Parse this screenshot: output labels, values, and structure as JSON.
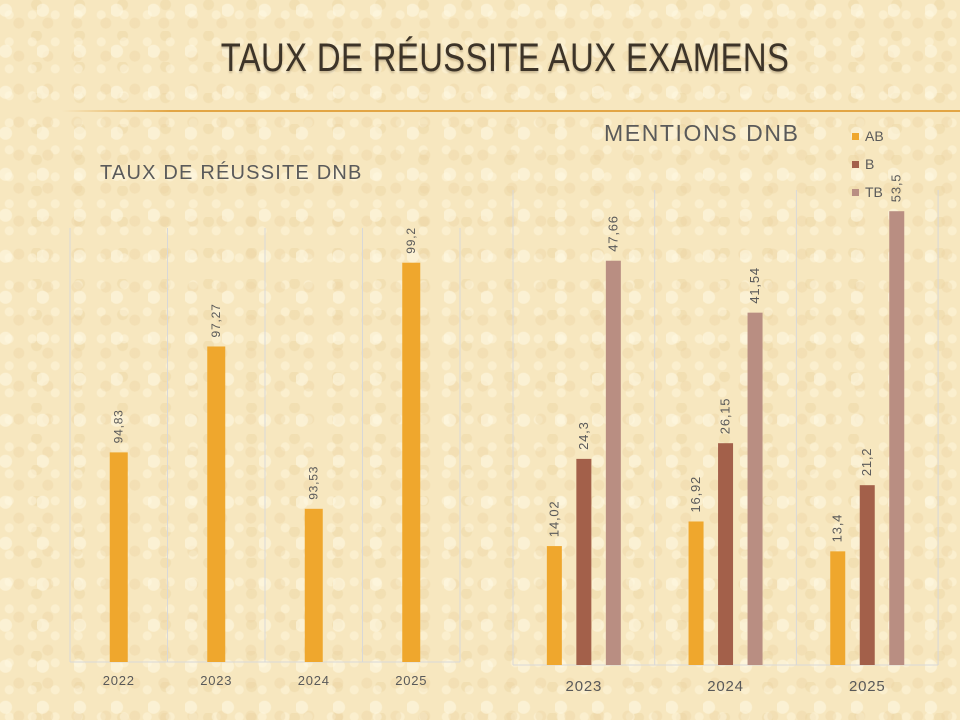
{
  "slide": {
    "title": "TAUX DE RÉUSSITE AUX EXAMENS"
  },
  "colors": {
    "accent": "#efa72d",
    "ab": "#efa72d",
    "b": "#a3604a",
    "tb": "#b98e82",
    "grid": "#d8d8d8",
    "text": "#595959"
  },
  "chart_data": [
    {
      "type": "bar",
      "title": "TAUX DE RÉUSSITE DNB",
      "categories": [
        "2022",
        "2023",
        "2024",
        "2025"
      ],
      "values": [
        94.83,
        97.27,
        93.53,
        99.2
      ],
      "labels": [
        "94,83",
        "97,27",
        "93,53",
        "99,2"
      ],
      "ylim": [
        90,
        100
      ],
      "grid": "vertical-category-lines"
    },
    {
      "type": "bar",
      "title": "MENTIONS DNB",
      "categories": [
        "2023",
        "2024",
        "2025"
      ],
      "series": [
        {
          "name": "AB",
          "values": [
            14.02,
            16.92,
            13.4
          ],
          "labels": [
            "14,02",
            "16,92",
            "13,4"
          ]
        },
        {
          "name": "B",
          "values": [
            24.3,
            26.15,
            21.2
          ],
          "labels": [
            "24,3",
            "26,15",
            "21,2"
          ]
        },
        {
          "name": "TB",
          "values": [
            47.66,
            41.54,
            53.5
          ],
          "labels": [
            "47,66",
            "41,54",
            "53,5"
          ]
        }
      ],
      "ylim": [
        0,
        56
      ],
      "legend": "top-right",
      "grid": "vertical-category-lines"
    }
  ]
}
